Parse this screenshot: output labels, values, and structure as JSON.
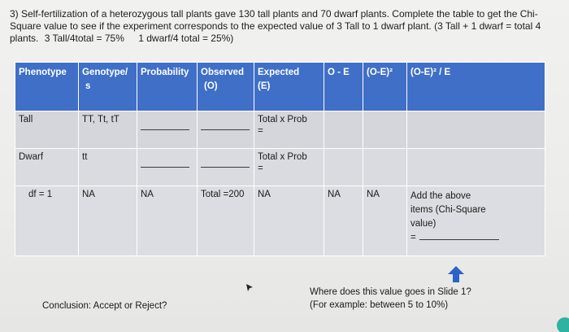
{
  "question": {
    "line1": "3) Self-fertilization of a heterozygous tall plants gave 130 tall plants and 70 dwarf plants. Complete the table to get the Chi-",
    "line2": "Square value to see if the experiment corresponds to the expected value of 3 Tall to 1 dwarf plant. (3 Tall + 1 dwarf = total 4",
    "line3_a": "plants.",
    "line3_b": "3 Tall/4total = 75%",
    "line3_c": "1 dwarf/4 total = 25%)"
  },
  "table": {
    "headers": [
      "Phenotype",
      "Genotype/ s",
      "Probability",
      "Observed (O)",
      "Expected (E)",
      "O - E",
      "(O-E)²",
      "(O-E)² / E"
    ],
    "header_lines": {
      "phenotype": "Phenotype",
      "genotype_1": "Genotype/",
      "genotype_2": "s",
      "probability": "Probability",
      "observed_1": "Observed",
      "observed_2": "(O)",
      "expected_1": "Expected",
      "expected_2": "(E)",
      "o_minus_e": "O - E",
      "o_minus_e_sq": "(O-E)²",
      "chi_term": "(O-E)² / E"
    },
    "rows": {
      "tall": {
        "phenotype": "Tall",
        "genotypes": "TT, Tt, tT",
        "expected_label": "Total x Prob",
        "expected_eq": "="
      },
      "dwarf": {
        "phenotype": "Dwarf",
        "genotypes": "tt",
        "expected_label": "Total x Prob",
        "expected_eq": "="
      },
      "df": {
        "phenotype": "df = 1",
        "genotypes": "NA",
        "probability": "NA",
        "observed": "Total =200",
        "expected": "NA",
        "o_minus_e": "NA",
        "o_minus_e_sq": "NA",
        "chi_line1": "Add the above",
        "chi_line2": "items (Chi-Square",
        "chi_line3": "value)",
        "chi_eq": "="
      }
    }
  },
  "footer": {
    "conclusion": "Conclusion: Accept or Reject?",
    "note_line1": "Where does this value goes in Slide 1?",
    "note_line2": "(For example: between 5 to 10%)"
  },
  "colors": {
    "header_blue": "#3f6fc6",
    "row_gray": "#d4d6dc",
    "arrow_blue": "#2a63c9",
    "badge_teal": "#2eb2a1"
  },
  "icons": [
    "up-arrow-icon",
    "mouse-cursor-icon"
  ]
}
